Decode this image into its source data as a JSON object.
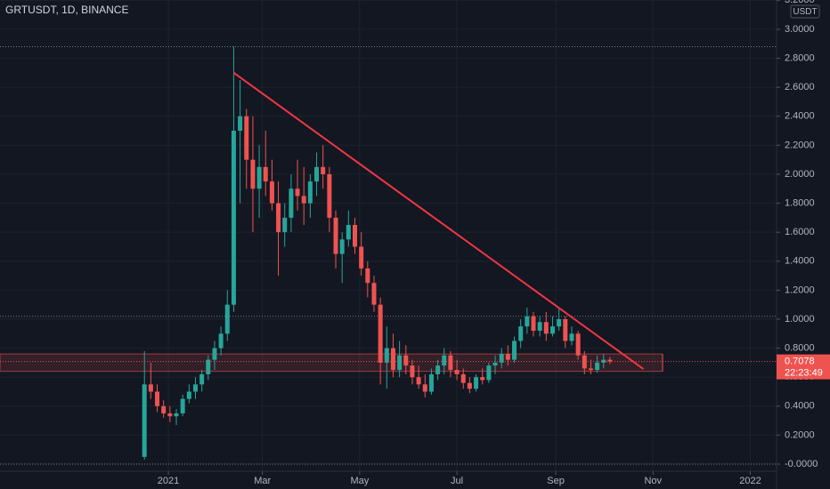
{
  "header": {
    "symbol": "GRTUSDT, 1D, BINANCE",
    "currency": "USDT"
  },
  "chart_data": {
    "type": "candlestick",
    "title": "GRTUSDT, 1D, BINANCE",
    "up_color": "#26a69a",
    "down_color": "#ef5350",
    "grid": true,
    "x": [
      -15,
      -11,
      -7,
      -3,
      1,
      5,
      9,
      13,
      17,
      21,
      25,
      29,
      33,
      37,
      41,
      45,
      49,
      53,
      57,
      61,
      65,
      69,
      73,
      77,
      81,
      85,
      89,
      93,
      97,
      101,
      105,
      109,
      113,
      117,
      121,
      125,
      129,
      133,
      137,
      141,
      145,
      149,
      153,
      157,
      161,
      165,
      169,
      173,
      177,
      181,
      185,
      189,
      193,
      197,
      201,
      205,
      209,
      213,
      217,
      221,
      225,
      229,
      233,
      237,
      241,
      245,
      249,
      253,
      257,
      261,
      265,
      269,
      273,
      277
    ],
    "open": [
      0.05,
      0.55,
      0.5,
      0.4,
      0.35,
      0.33,
      0.35,
      0.45,
      0.5,
      0.55,
      0.62,
      0.72,
      0.8,
      0.9,
      1.1,
      2.3,
      2.4,
      2.1,
      1.9,
      2.05,
      1.95,
      1.8,
      1.6,
      1.7,
      1.9,
      1.85,
      1.8,
      1.95,
      2.05,
      2.0,
      1.7,
      1.45,
      1.55,
      1.65,
      1.5,
      1.35,
      1.25,
      1.1,
      0.7,
      0.8,
      0.65,
      0.75,
      0.68,
      0.6,
      0.55,
      0.5,
      0.62,
      0.68,
      0.75,
      0.65,
      0.62,
      0.56,
      0.52,
      0.6,
      0.58,
      0.68,
      0.7,
      0.76,
      0.72,
      0.85,
      0.95,
      1.02,
      0.92,
      0.98,
      0.9,
      0.95,
      1.0,
      0.85,
      0.9,
      0.75,
      0.66,
      0.65,
      0.7,
      0.72
    ],
    "high": [
      0.78,
      0.7,
      0.55,
      0.44,
      0.4,
      0.38,
      0.48,
      0.55,
      0.6,
      0.65,
      0.75,
      0.85,
      0.95,
      1.2,
      2.88,
      2.65,
      2.45,
      2.4,
      2.2,
      2.3,
      2.1,
      1.95,
      1.8,
      2.0,
      2.1,
      2.05,
      2.0,
      2.15,
      2.2,
      2.05,
      1.75,
      1.6,
      1.75,
      1.7,
      1.6,
      1.4,
      1.3,
      1.15,
      0.95,
      0.9,
      0.85,
      0.82,
      0.72,
      0.68,
      0.62,
      0.66,
      0.72,
      0.8,
      0.78,
      0.72,
      0.66,
      0.6,
      0.62,
      0.66,
      0.7,
      0.75,
      0.8,
      0.82,
      0.88,
      1.0,
      1.08,
      1.05,
      1.02,
      1.05,
      1.02,
      1.07,
      1.02,
      0.95,
      0.92,
      0.78,
      0.72,
      0.75,
      0.76,
      0.74
    ],
    "low": [
      0.03,
      0.45,
      0.36,
      0.32,
      0.29,
      0.27,
      0.33,
      0.42,
      0.45,
      0.5,
      0.58,
      0.65,
      0.75,
      0.85,
      1.05,
      1.8,
      1.9,
      1.6,
      1.7,
      1.85,
      1.75,
      1.3,
      1.5,
      1.6,
      1.75,
      1.65,
      1.7,
      1.85,
      1.9,
      1.6,
      1.35,
      1.25,
      1.5,
      1.45,
      1.3,
      1.15,
      1.05,
      0.55,
      0.52,
      0.6,
      0.6,
      0.62,
      0.55,
      0.52,
      0.46,
      0.48,
      0.58,
      0.62,
      0.6,
      0.58,
      0.52,
      0.49,
      0.5,
      0.55,
      0.56,
      0.62,
      0.66,
      0.68,
      0.7,
      0.8,
      0.9,
      0.88,
      0.88,
      0.85,
      0.88,
      0.92,
      0.8,
      0.82,
      0.72,
      0.62,
      0.62,
      0.63,
      0.66,
      0.69
    ],
    "close": [
      0.55,
      0.5,
      0.4,
      0.35,
      0.33,
      0.35,
      0.45,
      0.5,
      0.55,
      0.62,
      0.72,
      0.8,
      0.9,
      1.1,
      2.3,
      2.4,
      2.1,
      1.9,
      2.05,
      1.95,
      1.8,
      1.6,
      1.7,
      1.9,
      1.85,
      1.8,
      1.95,
      2.05,
      2.0,
      1.7,
      1.45,
      1.55,
      1.65,
      1.5,
      1.35,
      1.25,
      1.1,
      0.7,
      0.8,
      0.65,
      0.75,
      0.68,
      0.6,
      0.55,
      0.5,
      0.62,
      0.68,
      0.75,
      0.65,
      0.62,
      0.56,
      0.52,
      0.6,
      0.58,
      0.68,
      0.7,
      0.76,
      0.72,
      0.85,
      0.95,
      1.02,
      0.92,
      0.98,
      0.9,
      0.95,
      1.0,
      0.85,
      0.9,
      0.75,
      0.66,
      0.65,
      0.7,
      0.72,
      0.7078
    ],
    "xlim": [
      -105.6,
      381.5
    ],
    "xticks": [
      {
        "value": 0,
        "label": "2021"
      },
      {
        "value": 59,
        "label": "Mar"
      },
      {
        "value": 120,
        "label": "May"
      },
      {
        "value": 181,
        "label": "Jul"
      },
      {
        "value": 243,
        "label": "Sep"
      },
      {
        "value": 304,
        "label": "Nov"
      },
      {
        "value": 365,
        "label": "2022"
      }
    ],
    "ylim": [
      -0.049,
      3.202
    ],
    "yticks": [
      {
        "value": 0,
        "label": "-0.0000"
      },
      {
        "value": 0.2,
        "label": "0.2000"
      },
      {
        "value": 0.4,
        "label": "0.4000"
      },
      {
        "value": 0.6,
        "label": "0.6000"
      },
      {
        "value": 0.8,
        "label": "0.8000"
      },
      {
        "value": 1.0,
        "label": "1.0000"
      },
      {
        "value": 1.2,
        "label": "1.2000"
      },
      {
        "value": 1.4,
        "label": "1.4000"
      },
      {
        "value": 1.6,
        "label": "1.6000"
      },
      {
        "value": 1.8,
        "label": "1.8000"
      },
      {
        "value": 2.0,
        "label": "2.0000"
      },
      {
        "value": 2.2,
        "label": "2.2000"
      },
      {
        "value": 2.4,
        "label": "2.4000"
      },
      {
        "value": 2.6,
        "label": "2.6000"
      },
      {
        "value": 2.8,
        "label": "2.8000"
      },
      {
        "value": 3.0,
        "label": "3.0000"
      },
      {
        "value": 3.2,
        "label": "3.2000"
      }
    ],
    "last_price": {
      "value": 0.7078,
      "label": "0.7078",
      "countdown": "22:23:49",
      "color": "#ef5350"
    },
    "trendline": {
      "x": [
        41,
        298
      ],
      "y": [
        2.7,
        0.656
      ],
      "color": "#f23645"
    },
    "levels": [
      2.88,
      1.02,
      0
    ],
    "zone": {
      "range": [
        0.64,
        0.76
      ],
      "x_end": 310,
      "color": "#ef5350"
    }
  }
}
